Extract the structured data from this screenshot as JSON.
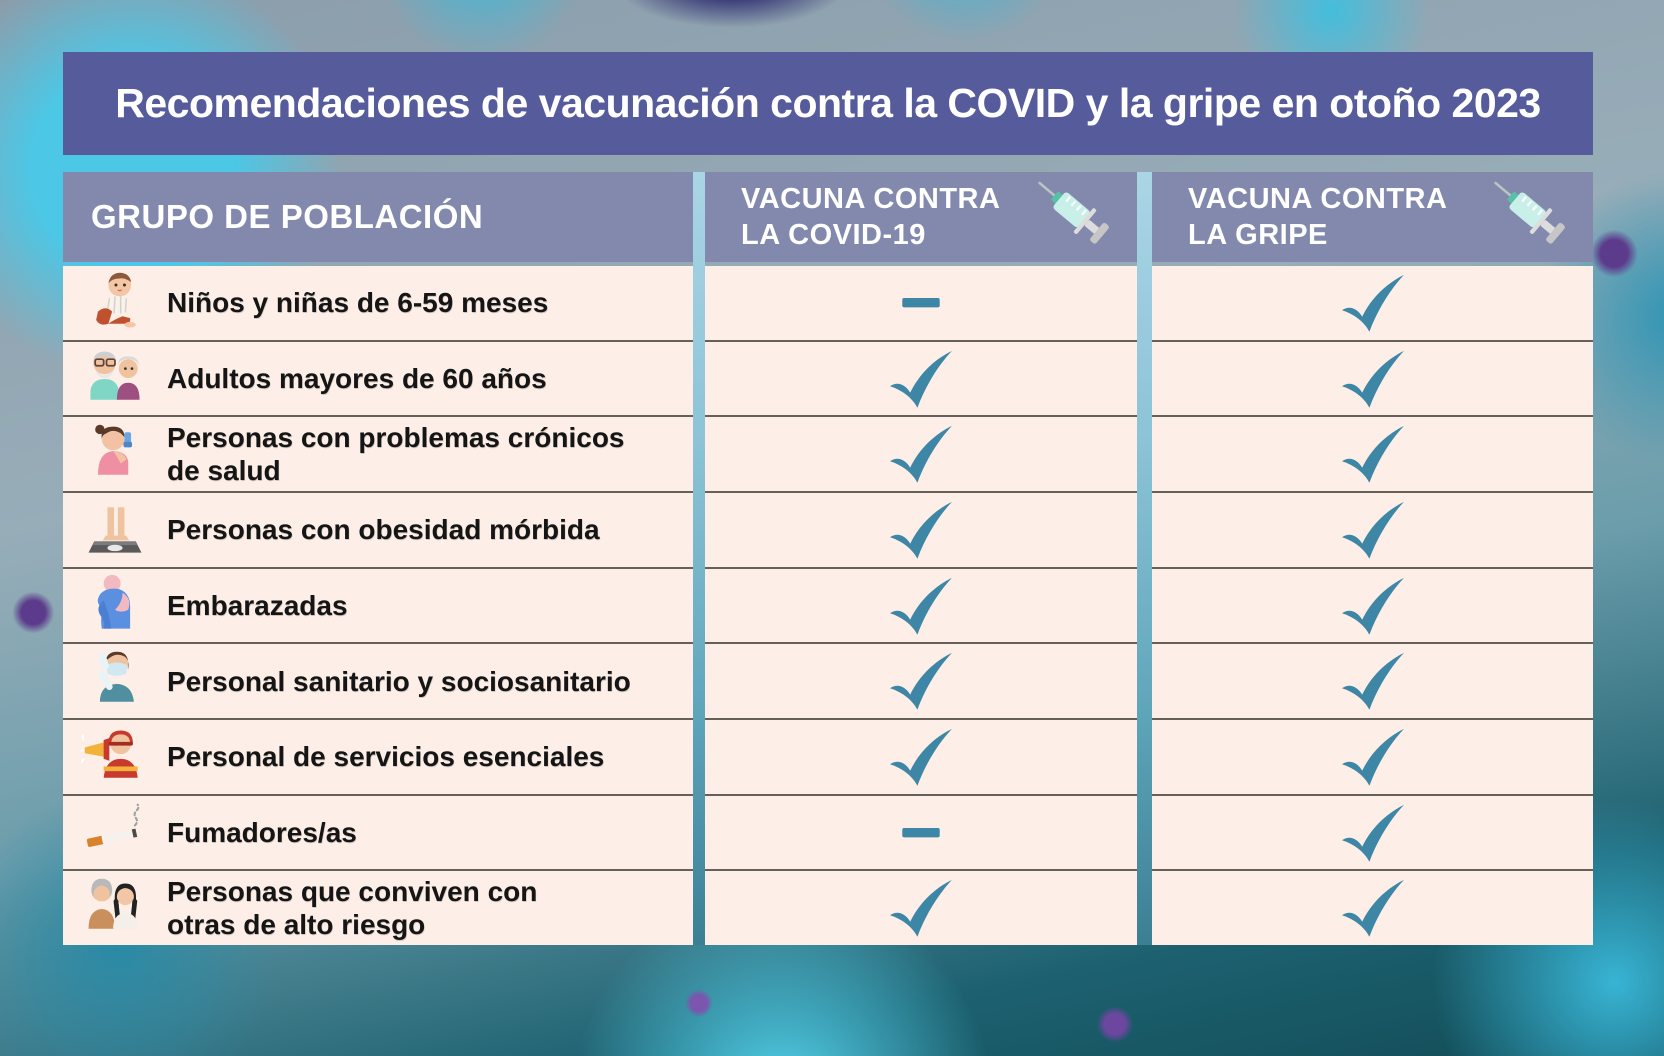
{
  "title": "Recomendaciones de vacunación contra la COVID y la gripe en otoño 2023",
  "table": {
    "columns": [
      {
        "id": "grupo",
        "label": "GRUPO DE POBLACIÓN"
      },
      {
        "id": "covid",
        "line1": "VACUNA CONTRA",
        "line2": "LA COVID-19",
        "icon": "syringe-icon"
      },
      {
        "id": "gripe",
        "line1": "VACUNA CONTRA",
        "line2": "LA GRIPE",
        "icon": "syringe-icon"
      }
    ],
    "rows": [
      {
        "icon": "baby-icon",
        "label": "Niños y niñas de 6-59 meses",
        "covid": "dash",
        "gripe": "check"
      },
      {
        "icon": "elderly-couple-icon",
        "label": "Adultos mayores de 60 años",
        "covid": "check",
        "gripe": "check"
      },
      {
        "icon": "inhaler-icon",
        "label": "Personas con problemas crónicos\nde salud",
        "covid": "check",
        "gripe": "check"
      },
      {
        "icon": "scale-icon",
        "label": "Personas con obesidad mórbida",
        "covid": "check",
        "gripe": "check"
      },
      {
        "icon": "pregnant-icon",
        "label": "Embarazadas",
        "covid": "check",
        "gripe": "check"
      },
      {
        "icon": "nurse-icon",
        "label": "Personal sanitario y sociosanitario",
        "covid": "check",
        "gripe": "check"
      },
      {
        "icon": "firefighter-icon",
        "label": "Personal de servicios esenciales",
        "covid": "check",
        "gripe": "check"
      },
      {
        "icon": "cigarette-icon",
        "label": "Fumadores/as",
        "covid": "dash",
        "gripe": "check"
      },
      {
        "icon": "household-icon",
        "label": "Personas que conviven con\notras de alto riesgo",
        "covid": "check",
        "gripe": "check"
      }
    ]
  },
  "colors": {
    "title_banner": "#565b9b",
    "column_header": "#8289ad",
    "row_background": "#fdefe8",
    "mark_teal": "#3e86a5",
    "gap_strip_top": "#aad5e5",
    "gap_strip_bottom": "#3b7f93"
  }
}
